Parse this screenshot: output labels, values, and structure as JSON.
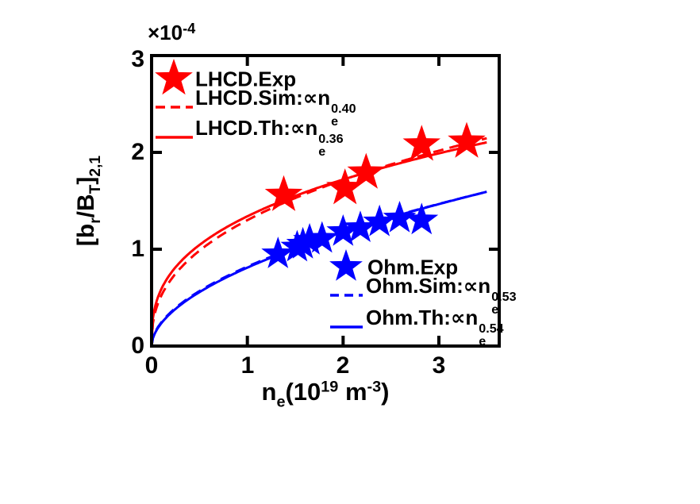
{
  "figure": {
    "axes": {
      "offset": {
        "base": "×10",
        "sup": "-4"
      },
      "xlabel": {
        "p1": "n",
        "sub1": "e",
        "p2": "(10",
        "sup1": "19",
        "p3": " m",
        "sup2": "-3",
        "p4": ")"
      },
      "ylabel": {
        "p1": "[b",
        "sub1": "r",
        "p2": "/B",
        "sub2": "T",
        "p3": "]",
        "sub3": "2,1"
      },
      "xticks": [
        "0",
        "1",
        "2",
        "3"
      ],
      "yticks": [
        "0",
        "1",
        "2",
        "3"
      ]
    },
    "legend_lhcd": {
      "exp_label": "LHCD.Exp",
      "sim": {
        "prefix": "LHCD.Sim:∝n",
        "sub": "e",
        "sup": "0.40"
      },
      "th": {
        "prefix": "LHCD.Th:∝n",
        "sub": "e",
        "sup": "0.36"
      }
    },
    "legend_ohm": {
      "exp_label": "Ohm.Exp",
      "sim": {
        "prefix": "Ohm.Sim:∝n",
        "sub": "e",
        "sup": "0.53"
      },
      "th": {
        "prefix": "Ohm.Th:∝n",
        "sub": "e",
        "sup": "0.54"
      }
    },
    "colors": {
      "lhcd": "#ff0000",
      "ohm": "#0000ff",
      "axis": "#000000"
    }
  },
  "chart_data": {
    "type": "scatter",
    "title": "",
    "xlabel": "n_e (10^19 m^-3)",
    "ylabel": "[b_r/B_T]_{2,1} (×10^-4)",
    "xlim": [
      0,
      3.63
    ],
    "ylim": [
      0,
      3
    ],
    "xticks": [
      0,
      1,
      2,
      3
    ],
    "yticks": [
      0,
      1,
      2,
      3
    ],
    "grid": false,
    "series": [
      {
        "name": "LHCD.Exp",
        "type": "scatter",
        "marker": "star",
        "color": "#ff0000",
        "size": 25,
        "x": [
          1.38,
          2.02,
          2.24,
          2.82,
          3.29
        ],
        "y": [
          1.56,
          1.63,
          1.79,
          2.08,
          2.11
        ]
      },
      {
        "name": "LHCD.Sim",
        "type": "power_curve",
        "style": "dashed",
        "color": "#ff0000",
        "coef": 1.3,
        "exponent": 0.4,
        "x_range": [
          0,
          3.5
        ]
      },
      {
        "name": "LHCD.Th",
        "type": "power_curve",
        "style": "solid",
        "color": "#ff0000",
        "coef": 1.34,
        "exponent": 0.36,
        "x_range": [
          0,
          3.5
        ]
      },
      {
        "name": "Ohm.Exp",
        "type": "scatter",
        "marker": "star",
        "color": "#0000ff",
        "size": 22,
        "x": [
          1.32,
          1.52,
          1.58,
          1.65,
          1.78,
          2.0,
          2.18,
          2.38,
          2.59,
          2.82
        ],
        "y": [
          0.95,
          1.02,
          1.05,
          1.09,
          1.11,
          1.18,
          1.22,
          1.28,
          1.32,
          1.3
        ]
      },
      {
        "name": "Ohm.Sim",
        "type": "power_curve",
        "style": "dashed",
        "color": "#0000ff",
        "coef": 0.82,
        "exponent": 0.53,
        "x_range": [
          0,
          3.5
        ]
      },
      {
        "name": "Ohm.Th",
        "type": "power_curve",
        "style": "solid",
        "color": "#0000ff",
        "coef": 0.81,
        "exponent": 0.54,
        "x_range": [
          0,
          3.5
        ]
      }
    ]
  }
}
